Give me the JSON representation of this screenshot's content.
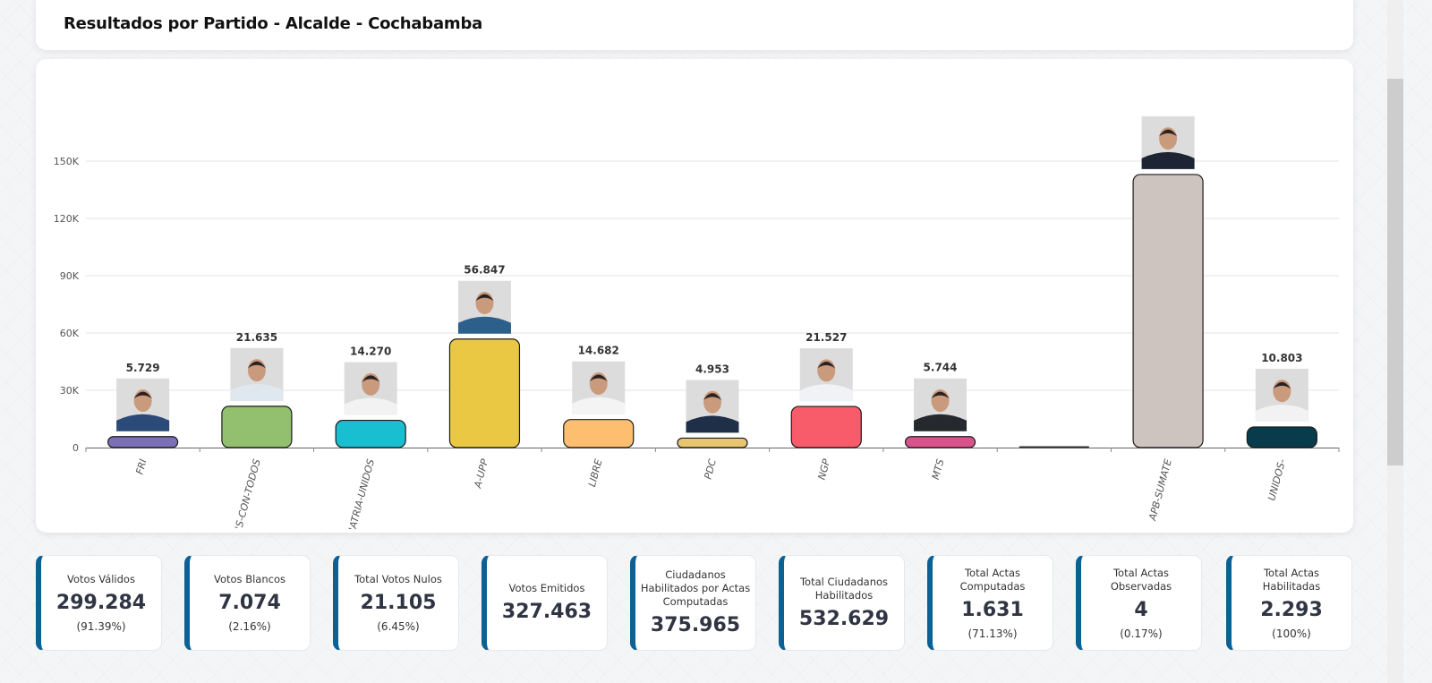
{
  "header": {
    "title": "Resultados por Partido - Alcalde - Cochabamba"
  },
  "chart_data": {
    "type": "bar",
    "title": "Resultados por Partido - Alcalde - Cochabamba",
    "xlabel": "",
    "ylabel": "",
    "ylim": [
      0,
      165000
    ],
    "yticks": [
      {
        "value": 0,
        "label": "0"
      },
      {
        "value": 30000,
        "label": "30K"
      },
      {
        "value": 60000,
        "label": "60K"
      },
      {
        "value": 90000,
        "label": "90K"
      },
      {
        "value": 120000,
        "label": "120K"
      },
      {
        "value": 150000,
        "label": "150K"
      }
    ],
    "grid": true,
    "categories": [
      "FRI",
      "'S-CON-TODOS",
      "'ATRIA-UNIDOS",
      "A-UPP",
      "LIBRE",
      "PDC",
      "NGP",
      "MTS",
      "",
      "APB-SUMATE",
      "UNIDOS-"
    ],
    "values": [
      5729,
      21635,
      14270,
      56847,
      14682,
      4953,
      21527,
      5744,
      0,
      143000,
      10803
    ],
    "data_labels": [
      "5.729",
      "21.635",
      "14.270",
      "56.847",
      "14.682",
      "4.953",
      "21.527",
      "5.744",
      "",
      "",
      "10.803"
    ],
    "has_photo": [
      true,
      true,
      true,
      true,
      true,
      true,
      true,
      true,
      false,
      true,
      true
    ],
    "colors": [
      "#7b6fb5",
      "#92c06e",
      "#19bfd1",
      "#ebc843",
      "#fdbf6f",
      "#e8c66f",
      "#f85c6a",
      "#d8538c",
      "#333333",
      "#cdc3bf",
      "#083c4c"
    ]
  },
  "stats": [
    {
      "label": "Votos Válidos",
      "value": "299.284",
      "pct": "(91.39%)"
    },
    {
      "label": "Votos Blancos",
      "value": "7.074",
      "pct": "(2.16%)"
    },
    {
      "label": "Total Votos Nulos",
      "value": "21.105",
      "pct": "(6.45%)"
    },
    {
      "label": "Votos Emitidos",
      "value": "327.463",
      "pct": null
    },
    {
      "label": "Ciudadanos Habilitados por Actas Computadas",
      "value": "375.965",
      "pct": null
    },
    {
      "label": "Total Ciudadanos Habilitados",
      "value": "532.629",
      "pct": null
    },
    {
      "label": "Total Actas Computadas",
      "value": "1.631",
      "pct": "(71.13%)"
    },
    {
      "label": "Total Actas Observadas",
      "value": "4",
      "pct": "(0.17%)"
    },
    {
      "label": "Total Actas Habilitadas",
      "value": "2.293",
      "pct": "(100%)"
    }
  ],
  "colors": {
    "accent": "#0c6194",
    "value_text": "#2f3542"
  }
}
